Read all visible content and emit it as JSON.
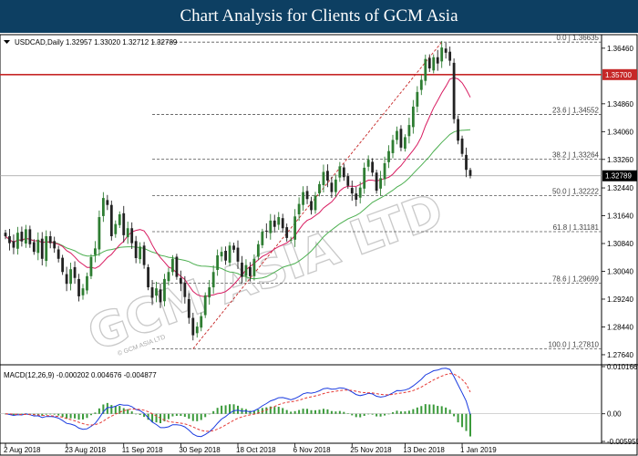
{
  "header": {
    "title": "Chart Analysis for Clients of GCM Asia"
  },
  "info_line": "USDCAD,Daily  1.32957 1.33020 1.32712 1.32789",
  "macd_line": "MACD(12,26,9) -0.000202 0.004676 -0.004877",
  "watermark": "GCM ASIA LTD",
  "copyright": "© GCM ASIA LTD",
  "colors": {
    "header_bg": "#0d3f62",
    "bull": "#2e7d32",
    "bear": "#222222",
    "ma_fast": "#d81b60",
    "ma_slow": "#4caf50",
    "resistance": "#c62828",
    "current_price_bg": "#000000",
    "macd_main": "#1a3be0",
    "macd_signal": "#e53935",
    "macd_hist": "#3a9a3a"
  },
  "chart_data": {
    "type": "candlestick",
    "symbol": "USDCAD",
    "timeframe": "Daily",
    "ohlc_last": {
      "open": 1.32957,
      "high": 1.3302,
      "low": 1.32712,
      "close": 1.32789
    },
    "ylim": [
      1.2735,
      1.3685
    ],
    "price_ticks": [
      "1.36460",
      "1.34860",
      "1.34060",
      "1.33260",
      "1.32440",
      "1.31640",
      "1.30840",
      "1.30040",
      "1.29240",
      "1.28440",
      "1.27640"
    ],
    "x_labels": [
      "2 Aug 2018",
      "23 Aug 2018",
      "11 Sep 2018",
      "30 Sep 2018",
      "18 Oct 2018",
      "6 Nov 2018",
      "25 Nov 2018",
      "13 Dec 2018",
      "1 Jan 2019"
    ],
    "fib_levels": [
      {
        "label": "0.0 | 1.36635",
        "price": 1.36635
      },
      {
        "label": "23.6 | 1.34552",
        "price": 1.34552
      },
      {
        "label": "38.2 | 1.33264",
        "price": 1.33264
      },
      {
        "label": "50.0 | 1.32222",
        "price": 1.32222
      },
      {
        "label": "61.8 | 1.31181",
        "price": 1.31181
      },
      {
        "label": "78.6 | 1.29699",
        "price": 1.29699
      },
      {
        "label": "100.0 | 1.27810",
        "price": 1.2781
      }
    ],
    "resistance": {
      "price": 1.357,
      "label": "1.35700"
    },
    "current_price": {
      "price": 1.32789,
      "label": "1.32789"
    },
    "closes": [
      1.3105,
      1.3085,
      1.3072,
      1.3115,
      1.309,
      1.3125,
      1.3082,
      1.306,
      1.3095,
      1.304,
      1.3105,
      1.3085,
      1.307,
      1.304,
      1.3002,
      1.2968,
      1.301,
      1.2985,
      1.2932,
      1.2955,
      1.299,
      1.3045,
      1.307,
      1.316,
      1.3215,
      1.3195,
      1.3105,
      1.314,
      1.3168,
      1.3108,
      1.3128,
      1.3085,
      1.3042,
      1.3075,
      1.3022,
      1.2958,
      1.2928,
      1.2955,
      1.2915,
      1.2982,
      1.3002,
      1.304,
      1.2988,
      1.2968,
      1.293,
      1.287,
      1.282,
      1.2845,
      1.2875,
      1.2935,
      1.2958,
      1.3002,
      1.305,
      1.306,
      1.3035,
      1.3078,
      1.3066,
      1.3032,
      1.2988,
      1.3022,
      1.299,
      1.304,
      1.3082,
      1.3118,
      1.312,
      1.315,
      1.3132,
      1.316,
      1.3128,
      1.31,
      1.3095,
      1.3162,
      1.3198,
      1.3232,
      1.3212,
      1.318,
      1.3222,
      1.3255,
      1.329,
      1.3265,
      1.3232,
      1.3268,
      1.3306,
      1.3275,
      1.325,
      1.3228,
      1.321,
      1.3245,
      1.3302,
      1.3325,
      1.3288,
      1.3236,
      1.3272,
      1.3315,
      1.335,
      1.3382,
      1.3408,
      1.336,
      1.339,
      1.3425,
      1.3478,
      1.352,
      1.3555,
      1.3615,
      1.3588,
      1.362,
      1.3602,
      1.3648,
      1.3633,
      1.361,
      1.3442,
      1.338,
      1.3342,
      1.3296,
      1.3279
    ],
    "macd": {
      "ylim": [
        -0.00595,
        0.01016
      ],
      "ticks": [
        "0.010166",
        "0.00",
        "-0.005955"
      ],
      "main": -0.000202,
      "signal": 0.004676,
      "histogram": -0.004877
    }
  }
}
